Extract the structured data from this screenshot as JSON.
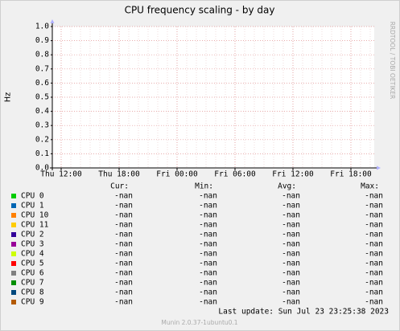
{
  "chart_data": {
    "type": "line",
    "title": "CPU frequency scaling - by day",
    "y_label": "Hz",
    "side_text": "RRDTOOL / TOBI OETIKER",
    "xticks": [
      "Thu 12:00",
      "Thu 18:00",
      "Fri 00:00",
      "Fri 06:00",
      "Fri 12:00",
      "Fri 18:00"
    ],
    "ylim": [
      0,
      1
    ],
    "yticks": [
      {
        "value": 0,
        "label": "0.0"
      },
      0.1,
      0.2,
      0.3,
      0.4,
      0.5,
      0.6,
      0.7,
      0.8,
      0.9,
      {
        "value": 1,
        "label": "1.0"
      }
    ],
    "grid": true,
    "legend_headers": [
      "Cur:",
      "Min:",
      "Avg:",
      "Max:"
    ],
    "series": [
      {
        "name": "CPU 0",
        "color": "#00cc00",
        "stats": [
          "-nan",
          "-nan",
          "-nan",
          "-nan"
        ]
      },
      {
        "name": "CPU 1",
        "color": "#0066b3",
        "stats": [
          "-nan",
          "-nan",
          "-nan",
          "-nan"
        ]
      },
      {
        "name": "CPU 10",
        "color": "#ff8000",
        "stats": [
          "-nan",
          "-nan",
          "-nan",
          "-nan"
        ]
      },
      {
        "name": "CPU 11",
        "color": "#ffcc00",
        "stats": [
          "-nan",
          "-nan",
          "-nan",
          "-nan"
        ]
      },
      {
        "name": "CPU 2",
        "color": "#330099",
        "stats": [
          "-nan",
          "-nan",
          "-nan",
          "-nan"
        ]
      },
      {
        "name": "CPU 3",
        "color": "#990099",
        "stats": [
          "-nan",
          "-nan",
          "-nan",
          "-nan"
        ]
      },
      {
        "name": "CPU 4",
        "color": "#ccff00",
        "stats": [
          "-nan",
          "-nan",
          "-nan",
          "-nan"
        ]
      },
      {
        "name": "CPU 5",
        "color": "#ff0000",
        "stats": [
          "-nan",
          "-nan",
          "-nan",
          "-nan"
        ]
      },
      {
        "name": "CPU 6",
        "color": "#808080",
        "stats": [
          "-nan",
          "-nan",
          "-nan",
          "-nan"
        ]
      },
      {
        "name": "CPU 7",
        "color": "#008f00",
        "stats": [
          "-nan",
          "-nan",
          "-nan",
          "-nan"
        ]
      },
      {
        "name": "CPU 8",
        "color": "#00487d",
        "stats": [
          "-nan",
          "-nan",
          "-nan",
          "-nan"
        ]
      },
      {
        "name": "CPU 9",
        "color": "#b35a00",
        "stats": [
          "-nan",
          "-nan",
          "-nan",
          "-nan"
        ]
      }
    ],
    "last_update": "Last update: Sun Jul 23 23:25:38 2023",
    "footer": "Munin 2.0.37-1ubuntu0.1"
  }
}
